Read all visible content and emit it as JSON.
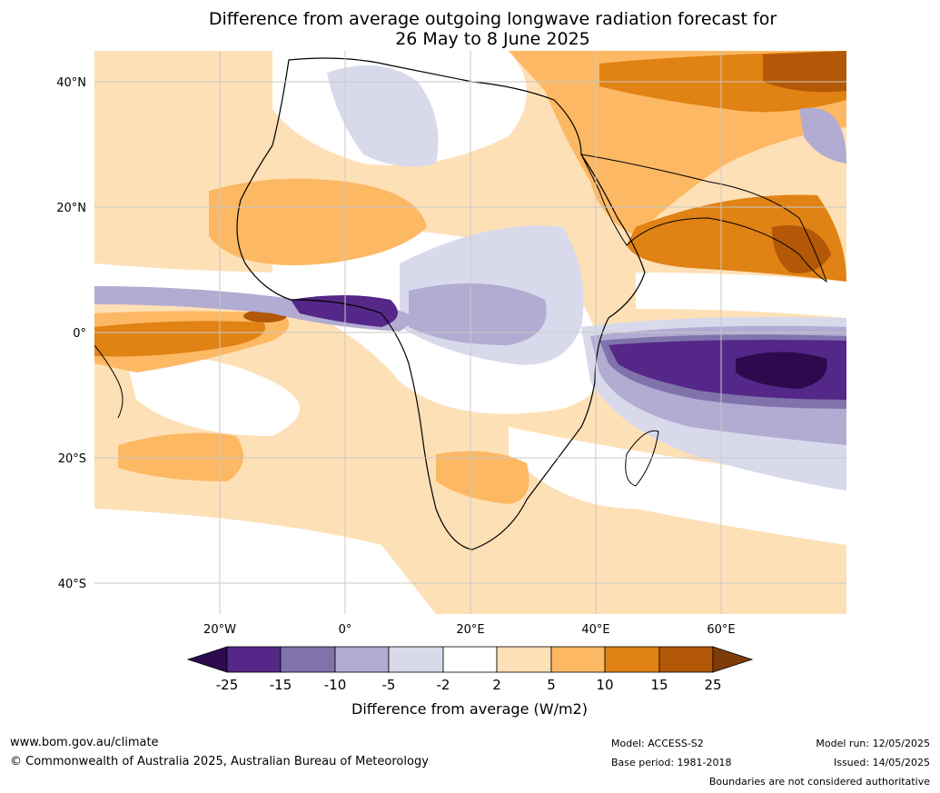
{
  "title": {
    "line1": "Difference from average outgoing longwave radiation forecast for",
    "line2": "26 May to 8 June 2025"
  },
  "axes": {
    "lat_labels": [
      "40°N",
      "20°N",
      "0°",
      "20°S",
      "40°S"
    ],
    "lon_labels": [
      "20°W",
      "0°",
      "20°E",
      "40°E",
      "60°E"
    ]
  },
  "colorbar": {
    "title": "Difference from average (W/m2)",
    "tick_labels": [
      "-25",
      "-15",
      "-10",
      "-5",
      "-2",
      "2",
      "5",
      "10",
      "15",
      "25"
    ],
    "colors": {
      "lt_-25": "#2d0a4e",
      "-25_-15": "#542788",
      "-15_-10": "#8073ac",
      "-10_-5": "#b2abd2",
      "-5_-2": "#d8daeb",
      "-2_2": "#ffffff",
      "2_5": "#fee0b6",
      "5_10": "#fdb863",
      "10_15": "#e08214",
      "15_25": "#b35806",
      "gt_25": "#7f3b08"
    }
  },
  "footer": {
    "website": "www.bom.gov.au/climate",
    "copyright": "© Commonwealth of Australia 2025, Australian Bureau of Meteorology",
    "model": "Model: ACCESS-S2",
    "base_period": "Base period: 1981-2018",
    "model_run": "Model run: 12/05/2025",
    "issued": "Issued: 14/05/2025",
    "disclaimer": "Boundaries are not considered authoritative"
  }
}
